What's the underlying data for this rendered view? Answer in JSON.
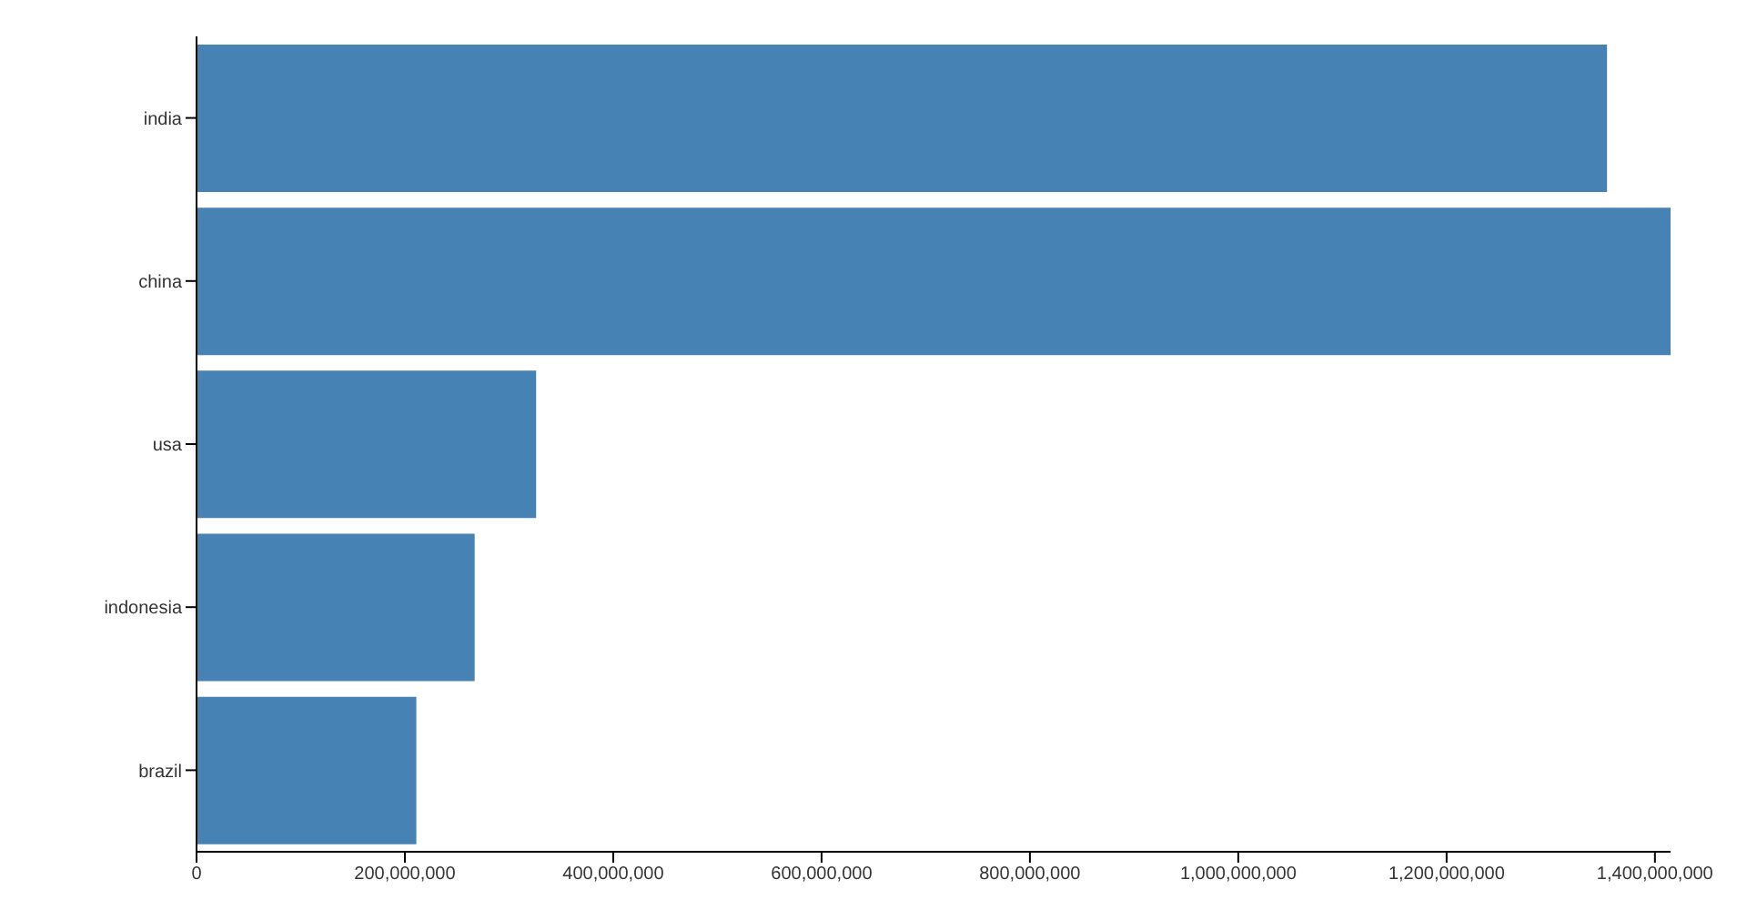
{
  "chart_data": {
    "type": "bar",
    "orientation": "horizontal",
    "categories": [
      "india",
      "china",
      "usa",
      "indonesia",
      "brazil"
    ],
    "values": [
      1354000000,
      1415000000,
      326000000,
      267000000,
      211000000
    ],
    "color": "#4682b4",
    "xlim": [
      0,
      1415000000
    ],
    "xticks": [
      0,
      {
        "value": 200000000,
        "label": "200,000,000"
      },
      {
        "value": 400000000,
        "label": "400,000,000"
      },
      {
        "value": 600000000,
        "label": "600,000,000"
      },
      {
        "value": 800000000,
        "label": "800,000,000"
      },
      {
        "value": 1000000000,
        "label": "1,000,000,000"
      },
      {
        "value": 1200000000,
        "label": "1,200,000,000"
      },
      {
        "value": 1400000000,
        "label": "1,400,000,000"
      }
    ]
  }
}
